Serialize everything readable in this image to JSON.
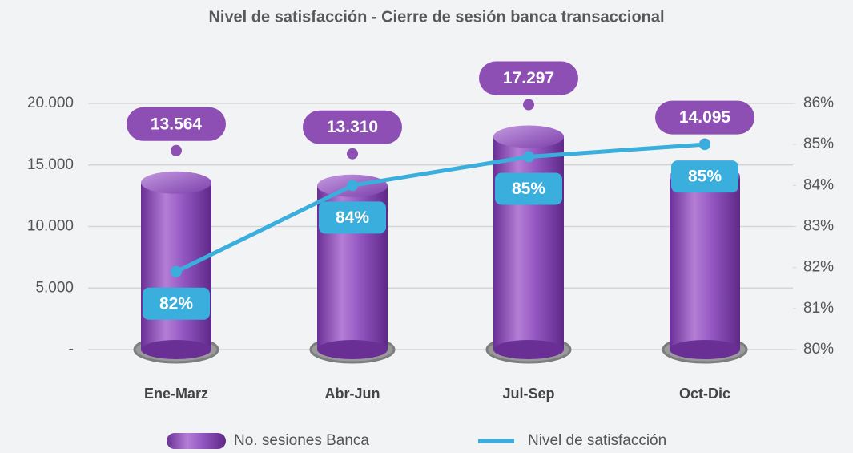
{
  "chart_data": {
    "type": "bar-line",
    "title": "Nivel de satisfacción  - Cierre de sesión banca transaccional",
    "categories": [
      "Ene-Marz",
      "Abr-Jun",
      "Jul-Sep",
      "Oct-Dic"
    ],
    "series": [
      {
        "name": "No. sesiones Banca",
        "color": "#8e4fb5",
        "type": "bar",
        "axis": "y",
        "values": [
          13564,
          13310,
          17297,
          14095
        ],
        "value_labels": [
          "13.564",
          "13.310",
          "17.297",
          "14.095"
        ]
      },
      {
        "name": "Nivel de satisfacción",
        "color": "#3aaedc",
        "type": "line",
        "axis": "y2",
        "values": [
          81.9,
          84.0,
          84.7,
          85.0
        ],
        "value_labels": [
          "82%",
          "84%",
          "85%",
          "85%"
        ]
      }
    ],
    "ylim": [
      0,
      20000
    ],
    "yticks": [
      {
        "value": 0,
        "label": "-"
      },
      {
        "value": 5000,
        "label": "5.000"
      },
      {
        "value": 10000,
        "label": "10.000"
      },
      {
        "value": 15000,
        "label": "15.000"
      },
      {
        "value": 20000,
        "label": "20.000"
      }
    ],
    "y2lim": [
      80,
      86
    ],
    "y2ticks": [
      {
        "value": 80,
        "label": "80%"
      },
      {
        "value": 81,
        "label": "81%"
      },
      {
        "value": 82,
        "label": "82%"
      },
      {
        "value": 83,
        "label": "83%"
      },
      {
        "value": 84,
        "label": "84%"
      },
      {
        "value": 85,
        "label": "85%"
      },
      {
        "value": 86,
        "label": "86%"
      }
    ],
    "grid": true,
    "legend": "bottom"
  }
}
